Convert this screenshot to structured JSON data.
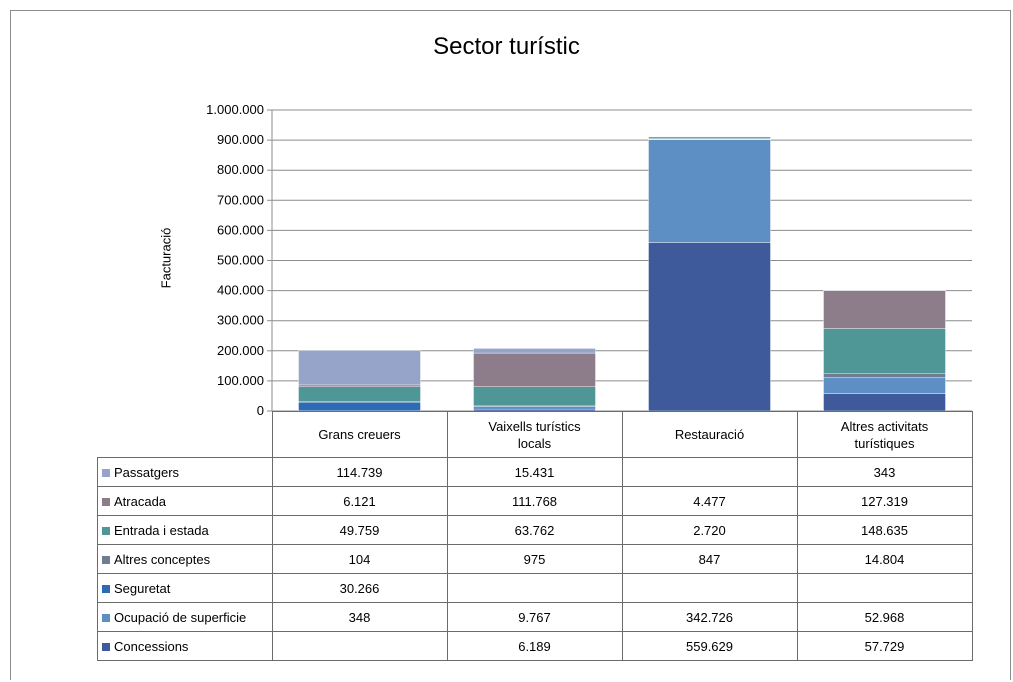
{
  "chart_data": {
    "type": "bar",
    "stacked": true,
    "title": "Sector turístic",
    "ylabel": "Facturació",
    "ylim": [
      0,
      1000000
    ],
    "yticks": [
      "0",
      "100.000",
      "200.000",
      "300.000",
      "400.000",
      "500.000",
      "600.000",
      "700.000",
      "800.000",
      "900.000",
      "1.000.000"
    ],
    "categories": [
      "Grans creuers",
      "Vaixells turístics locals",
      "Restauració",
      "Altres activitats turístiques"
    ],
    "series": [
      {
        "name": "Concessions",
        "color": "#3f5a9a",
        "values": [
          null,
          6189,
          559629,
          57729
        ],
        "labels": [
          "",
          "6.189",
          "559.629",
          "57.729"
        ]
      },
      {
        "name": "Ocupació de superficie",
        "color": "#5d8fc4",
        "values": [
          348,
          9767,
          342726,
          52968
        ],
        "labels": [
          "348",
          "9.767",
          "342.726",
          "52.968"
        ]
      },
      {
        "name": "Seguretat",
        "color": "#2e6bb5",
        "values": [
          30266,
          null,
          null,
          null
        ],
        "labels": [
          "30.266",
          "",
          "",
          ""
        ]
      },
      {
        "name": "Altres conceptes",
        "color": "#6f7d93",
        "values": [
          104,
          975,
          847,
          14804
        ],
        "labels": [
          "104",
          "975",
          "847",
          "14.804"
        ]
      },
      {
        "name": "Entrada i estada",
        "color": "#4e9796",
        "values": [
          49759,
          63762,
          2720,
          148635
        ],
        "labels": [
          "49.759",
          "63.762",
          "2.720",
          "148.635"
        ]
      },
      {
        "name": "Atracada",
        "color": "#8d7d8b",
        "values": [
          6121,
          111768,
          4477,
          127319
        ],
        "labels": [
          "6.121",
          "111.768",
          "4.477",
          "127.319"
        ]
      },
      {
        "name": "Passatgers",
        "color": "#97a4c9",
        "values": [
          114739,
          15431,
          null,
          343
        ],
        "labels": [
          "114.739",
          "15.431",
          "",
          "343"
        ]
      }
    ],
    "table_order": [
      "Passatgers",
      "Atracada",
      "Entrada i estada",
      "Altres conceptes",
      "Seguretat",
      "Ocupació de superficie",
      "Concessions"
    ],
    "grid": true,
    "legend": "data-table"
  }
}
